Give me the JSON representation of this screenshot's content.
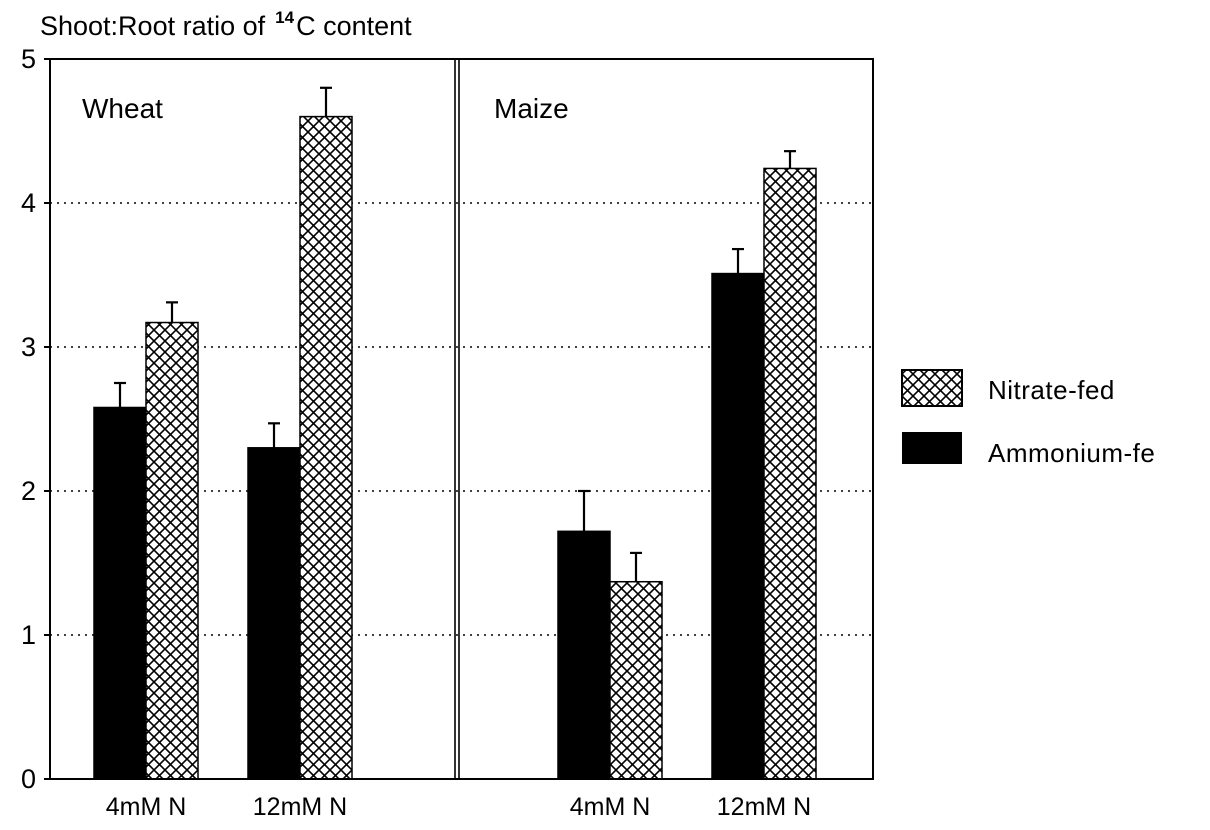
{
  "chart_data": {
    "type": "bar",
    "title_prefix": "Shoot:Root ratio of",
    "title_sup": "14",
    "title_suffix": "C  content",
    "ylim": [
      0,
      5
    ],
    "yticks": [
      "0",
      "1",
      "2",
      "3",
      "4",
      "5"
    ],
    "grid": "horizontal dotted",
    "legend_position": "right",
    "legend": [
      {
        "name": "Nitrate-fed",
        "pattern": "crosshatch"
      },
      {
        "name": "Ammonium-fe",
        "pattern": "solid"
      }
    ],
    "panels": [
      {
        "name": "Wheat",
        "categories": [
          "4mM N",
          "12mM N"
        ],
        "series": [
          {
            "name": "Ammonium-fed",
            "values": [
              2.58,
              2.3
            ],
            "errors": [
              0.17,
              0.17
            ]
          },
          {
            "name": "Nitrate-fed",
            "values": [
              3.17,
              4.6
            ],
            "errors": [
              0.14,
              0.2
            ]
          }
        ]
      },
      {
        "name": "Maize",
        "categories": [
          "4mM N",
          "12mM N"
        ],
        "series": [
          {
            "name": "Ammonium-fed",
            "values": [
              1.72,
              3.51
            ],
            "errors": [
              0.28,
              0.17
            ]
          },
          {
            "name": "Nitrate-fed",
            "values": [
              1.37,
              4.24
            ],
            "errors": [
              0.2,
              0.12
            ]
          }
        ]
      }
    ],
    "colors": {
      "ink": "#000000",
      "background": "#ffffff"
    }
  }
}
